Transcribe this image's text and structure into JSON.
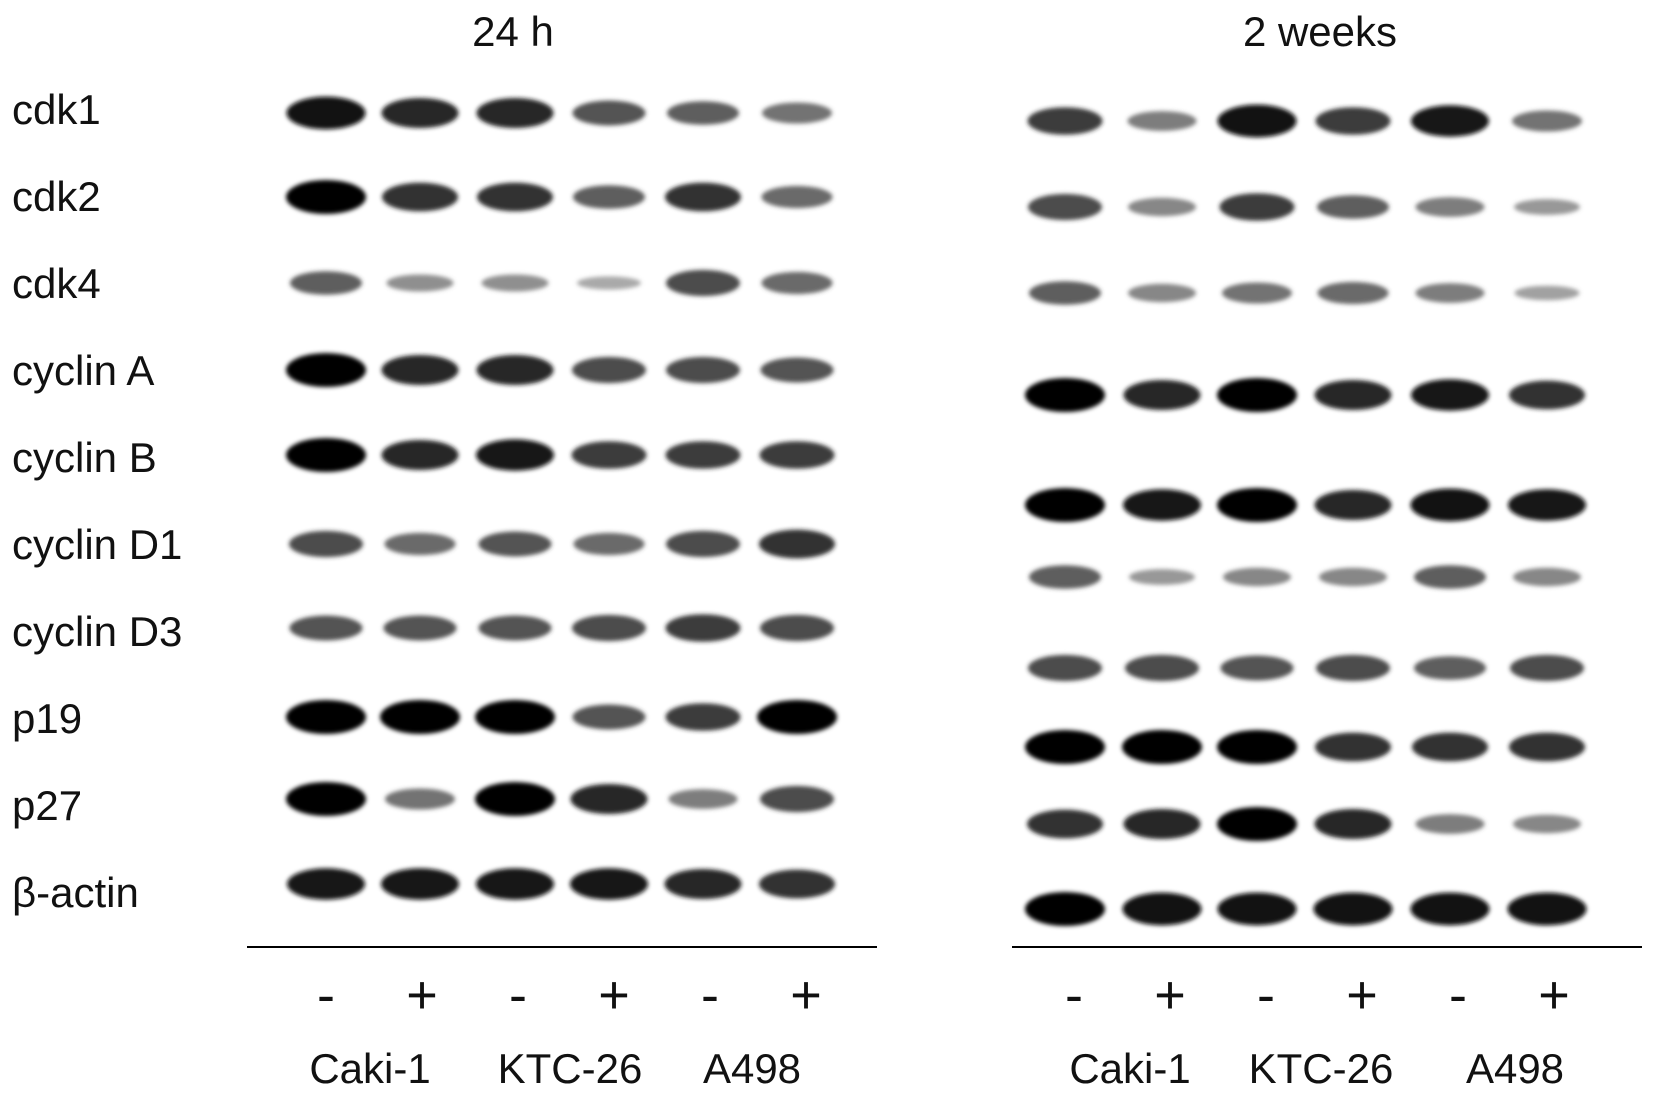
{
  "panels": [
    {
      "title": "24 h",
      "treatment": [
        "-",
        "+",
        "-",
        "+",
        "-",
        "+"
      ],
      "cell_lines": [
        "Caki-1",
        "KTC-26",
        "A498"
      ]
    },
    {
      "title": "2 weeks",
      "treatment": [
        "-",
        "+",
        "-",
        "+",
        "-",
        "+"
      ],
      "cell_lines": [
        "Caki-1",
        "KTC-26",
        "A498"
      ]
    }
  ],
  "proteins": [
    "cdk1",
    "cdk2",
    "cdk4",
    "cyclin A",
    "cyclin B",
    "cyclin D1",
    "cyclin D3",
    "p19",
    "p27",
    "β-actin"
  ],
  "band_intensity": {
    "24 h": [
      [
        0.95,
        0.85,
        0.85,
        0.65,
        0.6,
        0.5
      ],
      [
        1.0,
        0.8,
        0.8,
        0.6,
        0.8,
        0.55
      ],
      [
        0.6,
        0.35,
        0.35,
        0.2,
        0.7,
        0.55
      ],
      [
        1.0,
        0.85,
        0.85,
        0.7,
        0.7,
        0.65
      ],
      [
        1.0,
        0.85,
        0.9,
        0.75,
        0.75,
        0.75
      ],
      [
        0.7,
        0.55,
        0.65,
        0.55,
        0.7,
        0.8
      ],
      [
        0.65,
        0.65,
        0.65,
        0.7,
        0.75,
        0.7
      ],
      [
        1.0,
        1.0,
        1.0,
        0.65,
        0.75,
        1.0
      ],
      [
        1.0,
        0.5,
        1.0,
        0.85,
        0.45,
        0.7
      ],
      [
        0.9,
        0.9,
        0.9,
        0.9,
        0.85,
        0.8
      ]
    ],
    "2 weeks": [
      [
        0.75,
        0.45,
        0.95,
        0.75,
        0.9,
        0.5
      ],
      [
        0.7,
        0.4,
        0.75,
        0.6,
        0.45,
        0.3
      ],
      [
        0.6,
        0.4,
        0.5,
        0.55,
        0.45,
        0.25
      ],
      [
        1.0,
        0.85,
        1.0,
        0.85,
        0.9,
        0.8
      ],
      [
        1.0,
        0.9,
        1.0,
        0.85,
        0.95,
        0.9
      ],
      [
        0.6,
        0.3,
        0.4,
        0.4,
        0.6,
        0.4
      ],
      [
        0.7,
        0.7,
        0.65,
        0.7,
        0.6,
        0.7
      ],
      [
        1.0,
        1.0,
        1.0,
        0.8,
        0.8,
        0.8
      ],
      [
        0.8,
        0.85,
        1.0,
        0.85,
        0.45,
        0.4
      ],
      [
        1.0,
        0.95,
        0.95,
        0.95,
        0.95,
        0.95
      ]
    ]
  },
  "colors": {
    "band": "#000000",
    "background": "#ffffff"
  }
}
